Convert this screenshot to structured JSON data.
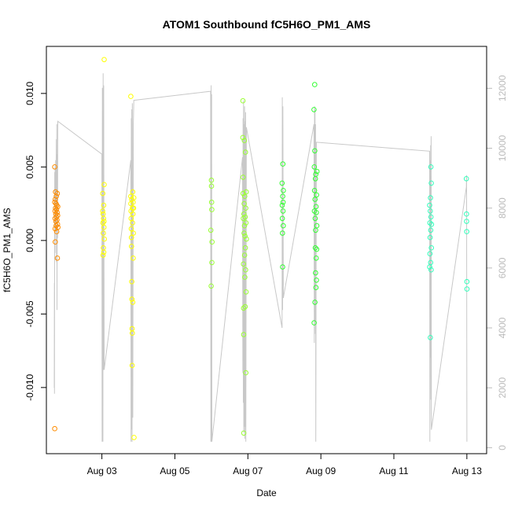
{
  "chart_data": {
    "type": "scatter",
    "title": "ATOM1 Southbound fC5H6O_PM1_AMS",
    "xlabel": "Date",
    "ylabel": "fC5H6O_PM1_AMS",
    "x_unit": "day",
    "xlim": [
      "2016-08-01 11:30",
      "2016-08-13 13:00"
    ],
    "ylim": [
      -0.0145,
      0.0132
    ],
    "x_ticks": [
      {
        "x": "2016-08-03",
        "label": "Aug 03"
      },
      {
        "x": "2016-08-05",
        "label": "Aug 05"
      },
      {
        "x": "2016-08-07",
        "label": "Aug 07"
      },
      {
        "x": "2016-08-09",
        "label": "Aug 09"
      },
      {
        "x": "2016-08-11",
        "label": "Aug 11"
      },
      {
        "x": "2016-08-13",
        "label": "Aug 13"
      }
    ],
    "y_ticks": [
      -0.01,
      -0.005,
      0.0,
      0.005,
      0.01
    ],
    "y_tick_labels": [
      "-0.010",
      "-0.005",
      "0.000",
      "0.005",
      "0.010"
    ],
    "y2_lim": [
      -200,
      13400
    ],
    "y2_ticks": [
      0,
      2000,
      4000,
      6000,
      8000,
      10000,
      12000
    ],
    "y2_tick_labels": [
      "0",
      "2000",
      "4000",
      "6000",
      "8000",
      "10000",
      "12000"
    ],
    "grid": false,
    "legend": "none",
    "series": [
      {
        "color": "#ff8c00",
        "points": [
          [
            "2016-08-01 17:00",
            0.005
          ],
          [
            "2016-08-01 17:00",
            -0.0128
          ],
          [
            "2016-08-01 17:00",
            0.0026
          ],
          [
            "2016-08-01 17:10",
            0.002
          ],
          [
            "2016-08-01 17:10",
            0.0015
          ],
          [
            "2016-08-01 17:15",
            0.0008
          ],
          [
            "2016-08-01 17:20",
            -0.0001
          ],
          [
            "2016-08-01 17:20",
            0.0028
          ],
          [
            "2016-08-01 17:30",
            0.0033
          ],
          [
            "2016-08-01 17:30",
            0.0022
          ],
          [
            "2016-08-01 17:40",
            0.0018
          ],
          [
            "2016-08-01 17:45",
            0.0013
          ],
          [
            "2016-08-01 17:50",
            0.0025
          ],
          [
            "2016-08-01 17:55",
            0.001
          ],
          [
            "2016-08-01 18:00",
            0.003
          ],
          [
            "2016-08-01 18:05",
            0.0016
          ],
          [
            "2016-08-01 18:10",
            0.0021
          ],
          [
            "2016-08-01 18:15",
            0.0006
          ],
          [
            "2016-08-01 18:20",
            0.0024
          ],
          [
            "2016-08-01 18:30",
            0.0014
          ],
          [
            "2016-08-01 18:35",
            0.0019
          ],
          [
            "2016-08-01 18:40",
            0.0032
          ],
          [
            "2016-08-01 18:45",
            -0.0012
          ],
          [
            "2016-08-01 18:50",
            0.0011
          ],
          [
            "2016-08-01 18:55",
            0.0017
          ],
          [
            "2016-08-01 19:00",
            0.0023
          ],
          [
            "2016-08-01 19:05",
            0.0009
          ]
        ]
      },
      {
        "color": "#ffff00",
        "points": [
          [
            "2016-08-03 00:30",
            0.002
          ],
          [
            "2016-08-03 00:35",
            0.0032
          ],
          [
            "2016-08-03 00:40",
            0.0012
          ],
          [
            "2016-08-03 00:45",
            -0.001
          ],
          [
            "2016-08-03 00:50",
            0.0018
          ],
          [
            "2016-08-03 00:55",
            0.0005
          ],
          [
            "2016-08-03 01:00",
            -0.0005
          ],
          [
            "2016-08-03 01:05",
            0.0015
          ],
          [
            "2016-08-03 01:10",
            0.0024
          ],
          [
            "2016-08-03 01:15",
            -0.0008
          ],
          [
            "2016-08-03 01:20",
            0.0009
          ],
          [
            "2016-08-03 01:25",
            0.0013
          ],
          [
            "2016-08-03 01:30",
            0.0038
          ],
          [
            "2016-08-03 01:30",
            0.0123
          ],
          [
            "2016-08-03 01:35",
            0.0001
          ],
          [
            "2016-08-03 19:00",
            0.0098
          ],
          [
            "2016-08-03 19:00",
            0.003
          ],
          [
            "2016-08-03 19:05",
            0.0025
          ],
          [
            "2016-08-03 19:10",
            0.002
          ],
          [
            "2016-08-03 19:15",
            0.0015
          ],
          [
            "2016-08-03 19:20",
            0.0008
          ],
          [
            "2016-08-03 19:25",
            0.0002
          ],
          [
            "2016-08-03 19:30",
            -0.0004
          ],
          [
            "2016-08-03 19:35",
            0.0028
          ],
          [
            "2016-08-03 19:40",
            -0.0028
          ],
          [
            "2016-08-03 19:45",
            -0.004
          ],
          [
            "2016-08-03 19:50",
            -0.006
          ],
          [
            "2016-08-03 19:55",
            -0.0085
          ],
          [
            "2016-08-03 20:00",
            -0.0063
          ],
          [
            "2016-08-03 20:05",
            0.0022
          ],
          [
            "2016-08-03 20:10",
            0.0012
          ],
          [
            "2016-08-03 20:15",
            0.0033
          ],
          [
            "2016-08-03 20:20",
            -0.0042
          ],
          [
            "2016-08-03 20:25",
            0.0018
          ],
          [
            "2016-08-03 20:30",
            0.0026
          ],
          [
            "2016-08-03 20:35",
            -0.0012
          ],
          [
            "2016-08-03 20:40",
            0.0005
          ],
          [
            "2016-08-03 20:50",
            0.0022
          ],
          [
            "2016-08-03 21:00",
            0.0029
          ],
          [
            "2016-08-03 21:10",
            -0.0134
          ]
        ]
      },
      {
        "color": "#99ff33",
        "points": [
          [
            "2016-08-05 23:40",
            0.0007
          ],
          [
            "2016-08-05 23:50",
            -0.0031
          ],
          [
            "2016-08-06 00:00",
            0.0041
          ],
          [
            "2016-08-06 00:05",
            0.0037
          ],
          [
            "2016-08-06 00:10",
            0.0026
          ],
          [
            "2016-08-06 00:15",
            0.0021
          ],
          [
            "2016-08-06 00:20",
            -0.0015
          ],
          [
            "2016-08-06 00:25",
            -0.0001
          ],
          [
            "2016-08-06 20:40",
            0.007
          ],
          [
            "2016-08-06 20:45",
            0.0095
          ],
          [
            "2016-08-06 20:50",
            0.0043
          ],
          [
            "2016-08-06 20:55",
            0.0032
          ],
          [
            "2016-08-06 21:00",
            0.0015
          ],
          [
            "2016-08-06 21:05",
            -0.0016
          ],
          [
            "2016-08-06 21:10",
            -0.0046
          ],
          [
            "2016-08-06 21:15",
            -0.0064
          ],
          [
            "2016-08-06 21:20",
            -0.0131
          ],
          [
            "2016-08-06 21:25",
            0.0018
          ],
          [
            "2016-08-06 21:30",
            0.0005
          ],
          [
            "2016-08-06 21:35",
            0.0025
          ],
          [
            "2016-08-06 21:40",
            0.0068
          ],
          [
            "2016-08-06 21:45",
            0.001
          ],
          [
            "2016-08-06 21:50",
            -0.001
          ],
          [
            "2016-08-06 21:55",
            0.003
          ],
          [
            "2016-08-06 22:00",
            -0.0025
          ],
          [
            "2016-08-06 22:05",
            0.0003
          ],
          [
            "2016-08-06 22:10",
            -0.0045
          ],
          [
            "2016-08-06 22:15",
            0.0016
          ],
          [
            "2016-08-06 22:20",
            -0.0005
          ],
          [
            "2016-08-06 22:25",
            0.006
          ],
          [
            "2016-08-06 22:30",
            -0.002
          ],
          [
            "2016-08-06 22:35",
            0.0022
          ],
          [
            "2016-08-06 22:40",
            -0.009
          ],
          [
            "2016-08-06 22:45",
            0.0012
          ],
          [
            "2016-08-06 22:50",
            -0.0035
          ],
          [
            "2016-08-06 22:55",
            0.0033
          ],
          [
            "2016-08-06 23:00",
            0.0001
          ]
        ]
      },
      {
        "color": "#33ff33",
        "points": [
          [
            "2016-08-07 22:30",
            0.0039
          ],
          [
            "2016-08-07 22:35",
            0.0024
          ],
          [
            "2016-08-07 22:40",
            0.0015
          ],
          [
            "2016-08-07 22:45",
            0.0005
          ],
          [
            "2016-08-07 22:50",
            -0.0018
          ],
          [
            "2016-08-07 22:55",
            0.003
          ],
          [
            "2016-08-07 23:00",
            0.0052
          ],
          [
            "2016-08-07 23:05",
            0.002
          ],
          [
            "2016-08-07 23:10",
            0.0026
          ],
          [
            "2016-08-07 23:15",
            0.001
          ],
          [
            "2016-08-07 23:20",
            0.0034
          ],
          [
            "2016-08-08 19:30",
            0.0089
          ],
          [
            "2016-08-08 19:35",
            -0.0056
          ],
          [
            "2016-08-08 19:40",
            0.005
          ],
          [
            "2016-08-08 19:45",
            0.002
          ],
          [
            "2016-08-08 19:50",
            0.0034
          ],
          [
            "2016-08-08 19:55",
            0.0106
          ],
          [
            "2016-08-08 20:00",
            0.0061
          ],
          [
            "2016-08-08 20:05",
            -0.0042
          ],
          [
            "2016-08-08 20:10",
            0.0028
          ],
          [
            "2016-08-08 20:15",
            0.0015
          ],
          [
            "2016-08-08 20:20",
            -0.0005
          ],
          [
            "2016-08-08 20:25",
            0.0042
          ],
          [
            "2016-08-08 20:30",
            -0.0022
          ],
          [
            "2016-08-08 20:35",
            0.0007
          ],
          [
            "2016-08-08 20:40",
            0.0045
          ],
          [
            "2016-08-08 20:45",
            -0.0032
          ],
          [
            "2016-08-08 20:50",
            0.0023
          ],
          [
            "2016-08-08 20:55",
            -0.0012
          ],
          [
            "2016-08-08 21:00",
            0.0019
          ],
          [
            "2016-08-08 21:05",
            -0.0027
          ],
          [
            "2016-08-08 21:10",
            0.0031
          ],
          [
            "2016-08-08 21:15",
            -0.0006
          ],
          [
            "2016-08-08 21:20",
            0.001
          ],
          [
            "2016-08-08 21:25",
            0.0047
          ]
        ]
      },
      {
        "color": "#33ffbb",
        "points": [
          [
            "2016-08-11 23:30",
            0.0024
          ],
          [
            "2016-08-11 23:35",
            -0.0018
          ],
          [
            "2016-08-11 23:40",
            0.0012
          ],
          [
            "2016-08-11 23:45",
            -0.0009
          ],
          [
            "2016-08-11 23:50",
            0.0002
          ],
          [
            "2016-08-11 23:55",
            0.002
          ],
          [
            "2016-08-12 00:00",
            -0.0066
          ],
          [
            "2016-08-12 00:05",
            0.0029
          ],
          [
            "2016-08-12 00:10",
            -0.0015
          ],
          [
            "2016-08-12 00:15",
            0.0007
          ],
          [
            "2016-08-12 00:20",
            0.005
          ],
          [
            "2016-08-12 00:25",
            0.0016
          ],
          [
            "2016-08-12 00:30",
            -0.002
          ],
          [
            "2016-08-12 00:35",
            0.0039
          ],
          [
            "2016-08-12 00:40",
            -0.0005
          ],
          [
            "2016-08-12 00:45",
            0.0011
          ],
          [
            "2016-08-12 23:40",
            0.0042
          ],
          [
            "2016-08-12 23:45",
            0.0018
          ],
          [
            "2016-08-12 23:50",
            0.0013
          ],
          [
            "2016-08-12 23:55",
            0.0006
          ],
          [
            "2016-08-13 00:00",
            -0.0028
          ],
          [
            "2016-08-13 00:05",
            -0.0033
          ]
        ]
      }
    ],
    "secondary_series": {
      "name": "",
      "color": "#c8c8c8",
      "axis": "y2",
      "points": [
        [
          "2016-08-01 16:40",
          2000
        ],
        [
          "2016-08-01 16:45",
          5500
        ],
        [
          "2016-08-01 16:50",
          1800
        ],
        [
          "2016-08-01 17:00",
          9200
        ],
        [
          "2016-08-01 17:10",
          6500
        ],
        [
          "2016-08-01 17:15",
          9400
        ],
        [
          "2016-08-01 17:25",
          7200
        ],
        [
          "2016-08-01 17:35",
          9600
        ],
        [
          "2016-08-01 17:45",
          8000
        ],
        [
          "2016-08-01 18:00",
          10300
        ],
        [
          "2016-08-01 18:10",
          6200
        ],
        [
          "2016-08-01 18:20",
          10800
        ],
        [
          "2016-08-01 18:30",
          4600
        ],
        [
          "2016-08-01 18:40",
          9800
        ],
        [
          "2016-08-01 18:50",
          7000
        ],
        [
          "2016-08-01 19:00",
          10900
        ],
        [
          "2016-08-03 00:00",
          9800
        ],
        [
          "2016-08-03 00:10",
          200
        ],
        [
          "2016-08-03 00:20",
          12000
        ],
        [
          "2016-08-03 00:30",
          12000
        ],
        [
          "2016-08-03 00:40",
          200
        ],
        [
          "2016-08-03 00:50",
          12500
        ],
        [
          "2016-08-03 01:00",
          2600
        ],
        [
          "2016-08-03 01:10",
          12100
        ],
        [
          "2016-08-03 01:30",
          2600
        ],
        [
          "2016-08-03 19:00",
          9600
        ],
        [
          "2016-08-03 19:10",
          200
        ],
        [
          "2016-08-03 19:20",
          11000
        ],
        [
          "2016-08-03 19:30",
          600
        ],
        [
          "2016-08-03 19:40",
          11300
        ],
        [
          "2016-08-03 19:50",
          200
        ],
        [
          "2016-08-03 20:00",
          11500
        ],
        [
          "2016-08-03 20:20",
          1000
        ],
        [
          "2016-08-03 20:40",
          10800
        ],
        [
          "2016-08-03 21:00",
          11600
        ],
        [
          "2016-08-05 23:30",
          11900
        ],
        [
          "2016-08-05 23:40",
          200
        ],
        [
          "2016-08-05 23:50",
          12100
        ],
        [
          "2016-08-06 00:00",
          200
        ],
        [
          "2016-08-06 00:10",
          11800
        ],
        [
          "2016-08-06 00:20",
          200
        ],
        [
          "2016-08-06 20:30",
          9700
        ],
        [
          "2016-08-06 20:40",
          2500
        ],
        [
          "2016-08-06 20:50",
          11000
        ],
        [
          "2016-08-06 21:00",
          1500
        ],
        [
          "2016-08-06 21:10",
          11600
        ],
        [
          "2016-08-06 21:20",
          500
        ],
        [
          "2016-08-06 21:30",
          10800
        ],
        [
          "2016-08-06 21:40",
          700
        ],
        [
          "2016-08-06 21:50",
          11400
        ],
        [
          "2016-08-06 22:00",
          300
        ],
        [
          "2016-08-06 22:10",
          10900
        ],
        [
          "2016-08-06 22:20",
          700
        ],
        [
          "2016-08-06 22:30",
          11200
        ],
        [
          "2016-08-06 22:40",
          200
        ],
        [
          "2016-08-06 23:00",
          10700
        ],
        [
          "2016-08-07 22:30",
          4000
        ],
        [
          "2016-08-07 22:40",
          11700
        ],
        [
          "2016-08-07 22:50",
          4600
        ],
        [
          "2016-08-07 23:00",
          11400
        ],
        [
          "2016-08-07 23:20",
          5000
        ],
        [
          "2016-08-08 19:30",
          10800
        ],
        [
          "2016-08-08 19:40",
          3500
        ],
        [
          "2016-08-08 19:50",
          11400
        ],
        [
          "2016-08-08 20:00",
          4200
        ],
        [
          "2016-08-08 20:10",
          11300
        ],
        [
          "2016-08-08 20:20",
          3800
        ],
        [
          "2016-08-08 20:30",
          10800
        ],
        [
          "2016-08-08 20:40",
          200
        ],
        [
          "2016-08-08 21:00",
          10200
        ],
        [
          "2016-08-11 23:30",
          9900
        ],
        [
          "2016-08-11 23:40",
          200
        ],
        [
          "2016-08-11 23:50",
          9600
        ],
        [
          "2016-08-12 00:00",
          3000
        ],
        [
          "2016-08-12 00:10",
          10100
        ],
        [
          "2016-08-12 00:20",
          1600
        ],
        [
          "2016-08-12 00:30",
          10400
        ],
        [
          "2016-08-12 00:40",
          600
        ],
        [
          "2016-08-12 23:40",
          8700
        ],
        [
          "2016-08-12 23:50",
          9100
        ],
        [
          "2016-08-13 00:00",
          200
        ]
      ]
    }
  }
}
